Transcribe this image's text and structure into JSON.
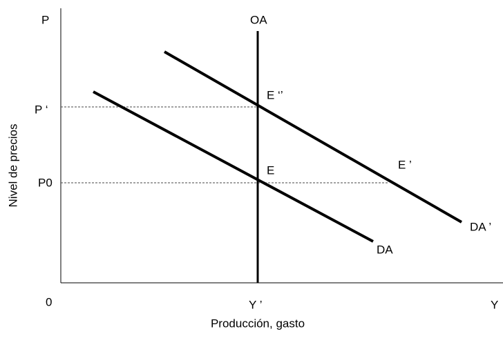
{
  "axes": {
    "y_axis_label": "Nivel de precios",
    "x_axis_label": "Producción, gasto",
    "y_end": "P",
    "x_end": "Y",
    "origin": "0"
  },
  "price_levels": {
    "p_prime": "P ‘",
    "p0": "P0"
  },
  "output_levels": {
    "y_prime": "Y ’"
  },
  "curves": {
    "supply": "OA",
    "demand": "DA",
    "demand_shifted": "DA ’"
  },
  "points": {
    "e": "E",
    "e_prime": "E ’",
    "e_double": "E ‘’"
  }
}
